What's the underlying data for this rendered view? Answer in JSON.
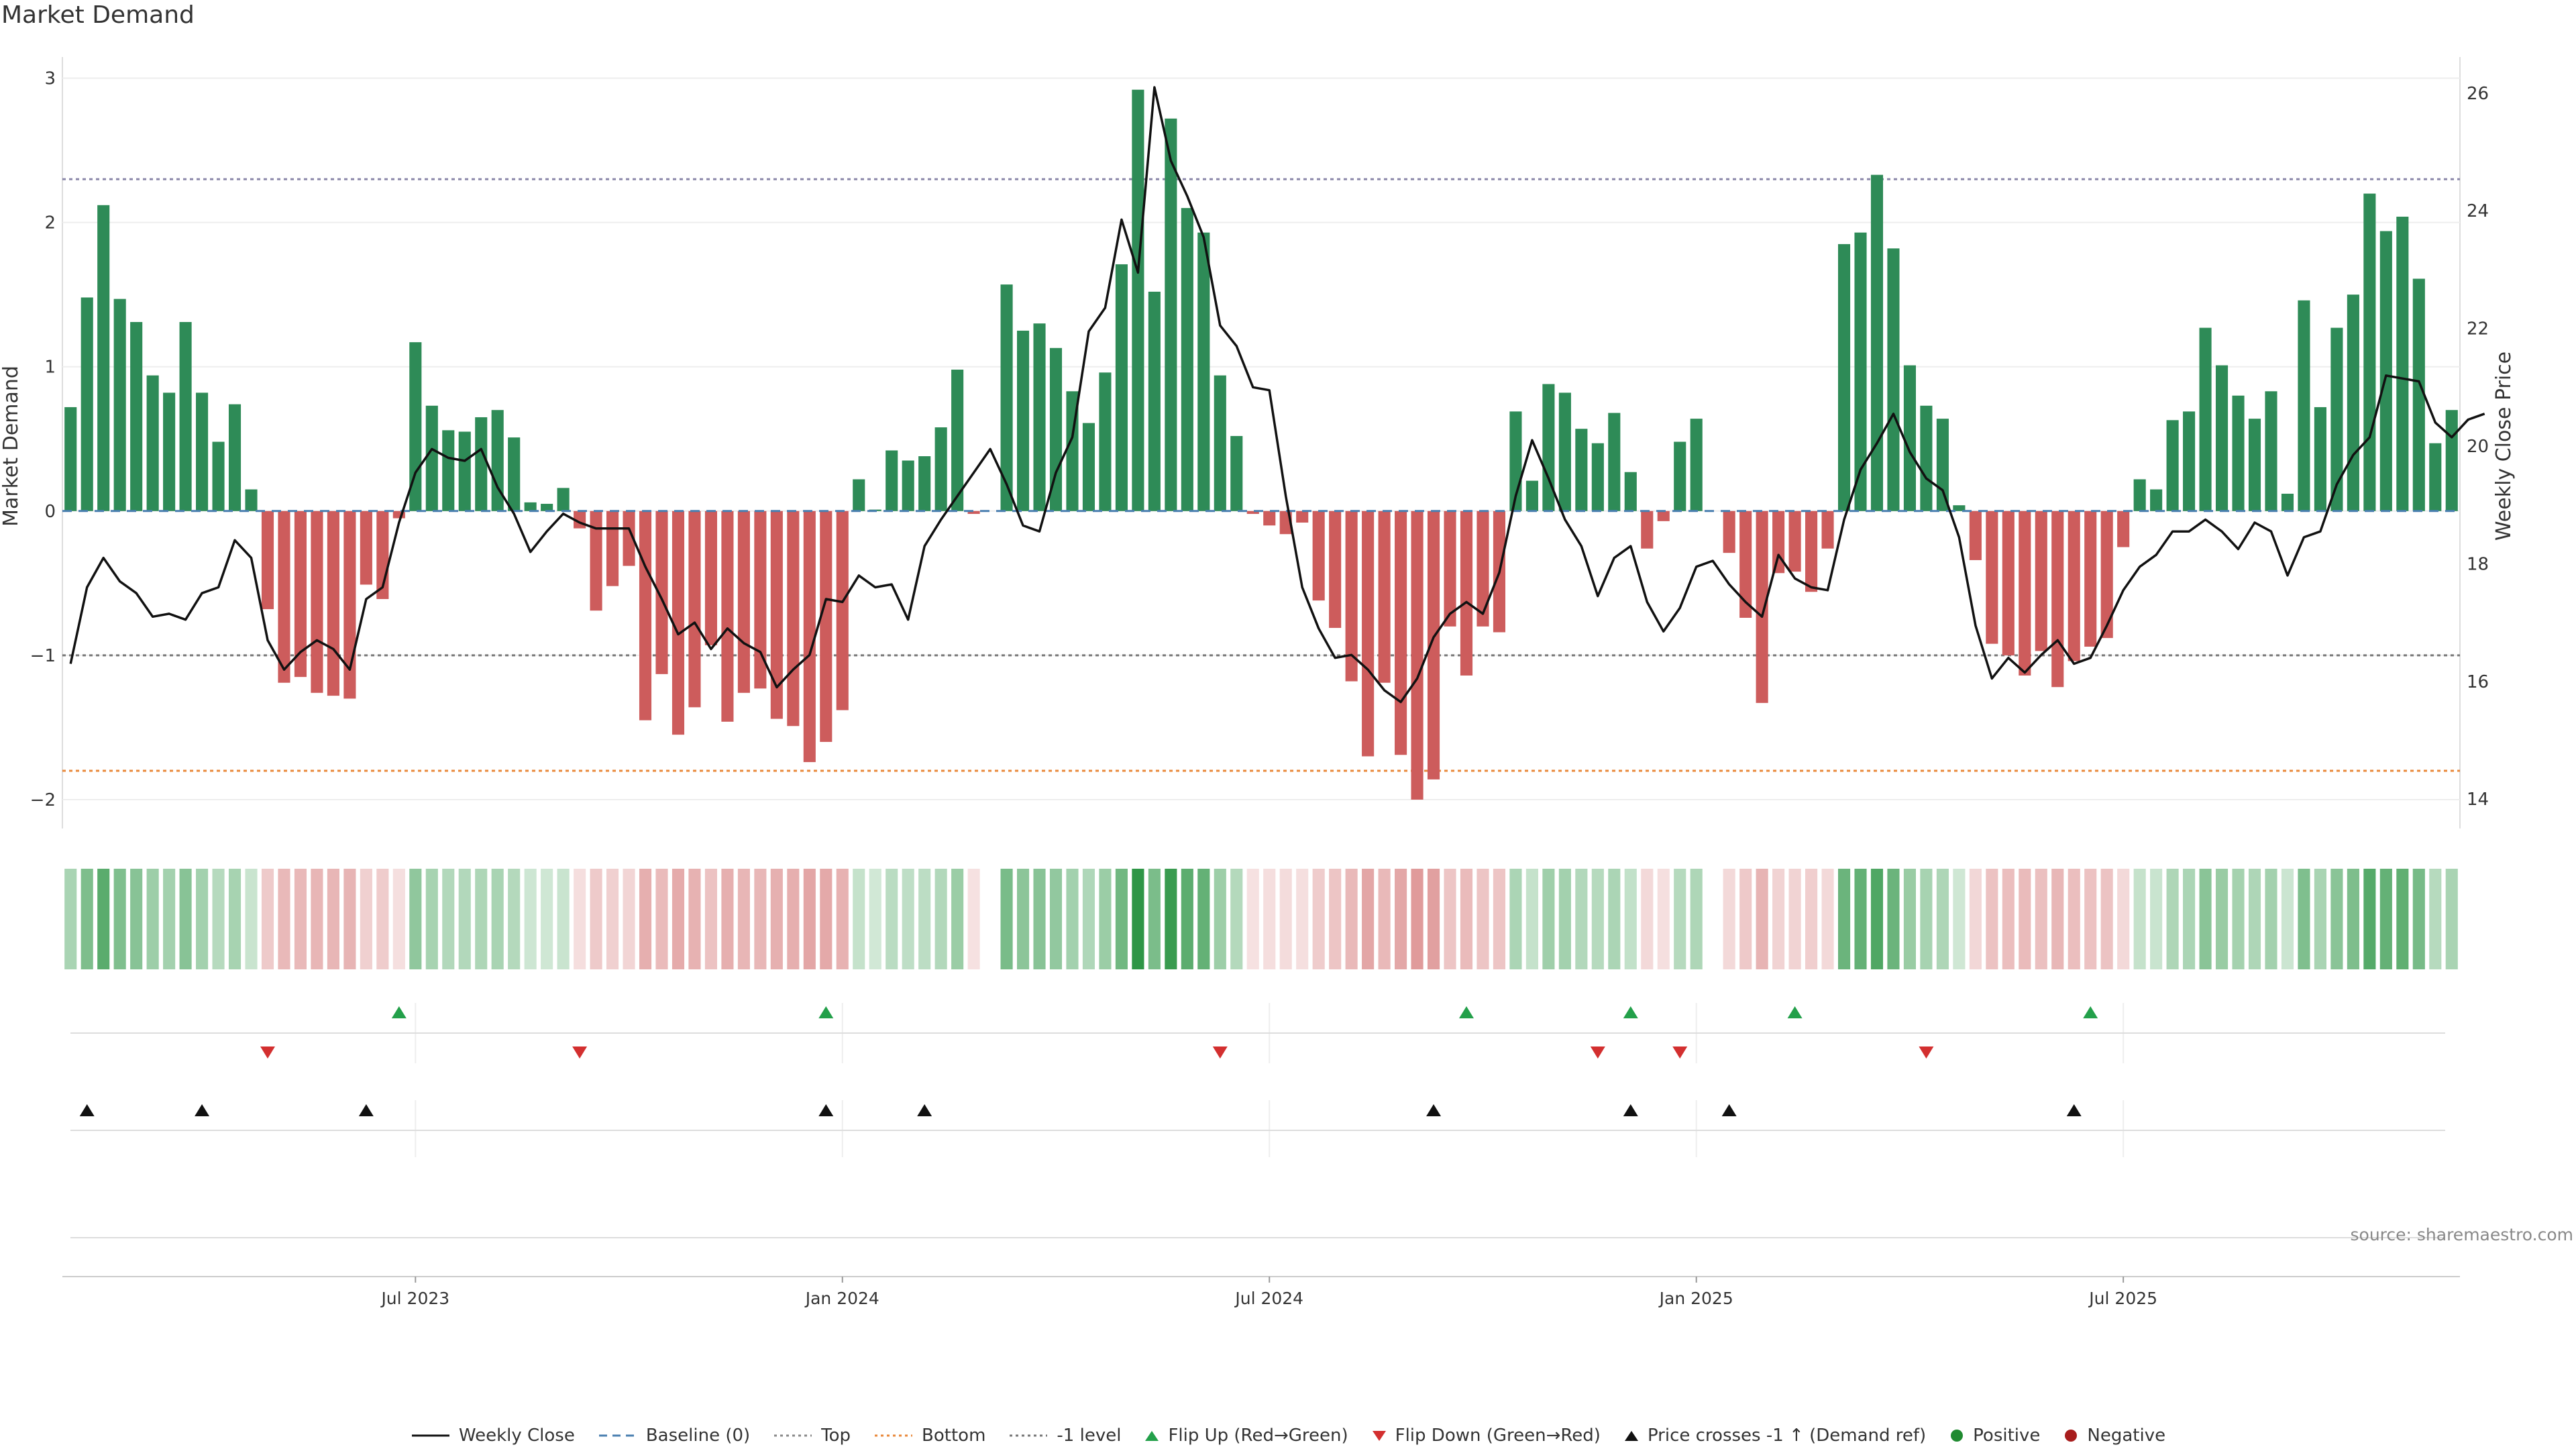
{
  "chart_data": {
    "type": "bar",
    "title": "Market Demand",
    "ylabel": "Market Demand",
    "y2label": "Weekly Close Price",
    "ylim": [
      -2.2,
      3.1
    ],
    "y2lim": [
      13.5,
      26.5
    ],
    "yticks": [
      "3",
      "2",
      "1",
      "0",
      "−1",
      "−2"
    ],
    "y2ticks": [
      "26",
      "24",
      "22",
      "20",
      "18",
      "16",
      "14"
    ],
    "x_axis_labels": [
      "Jul 2023",
      "Jan 2024",
      "Jul 2024",
      "Jan 2025",
      "Jul 2025"
    ],
    "x_axis_label_weeks": [
      21,
      47,
      73,
      99,
      125
    ],
    "reference_lines": {
      "top": 2.3,
      "bottom": -1.8,
      "minus_one": -1.0,
      "baseline": 0
    },
    "series": [
      {
        "name": "Market Demand",
        "values": [
          0.72,
          1.48,
          2.12,
          1.47,
          1.31,
          0.94,
          0.82,
          1.31,
          0.82,
          0.48,
          0.74,
          0.15,
          -0.68,
          -1.19,
          -1.15,
          -1.26,
          -1.28,
          -1.3,
          -0.51,
          -0.61,
          -0.05,
          1.17,
          0.73,
          0.56,
          0.55,
          0.65,
          0.7,
          0.51,
          0.06,
          0.05,
          0.16,
          -0.12,
          -0.69,
          -0.52,
          -0.38,
          -1.45,
          -1.13,
          -1.55,
          -1.36,
          -0.93,
          -1.46,
          -1.26,
          -1.23,
          -1.44,
          -1.49,
          -1.74,
          -1.6,
          -1.38,
          0.22,
          0.01,
          0.42,
          0.35,
          0.38,
          0.58,
          0.98,
          -0.02,
          0,
          1.57,
          1.25,
          1.3,
          1.13,
          0.83,
          0.61,
          0.96,
          1.71,
          2.92,
          1.52,
          2.72,
          2.1,
          1.93,
          0.94,
          0.52,
          -0.02,
          -0.1,
          -0.16,
          -0.08,
          -0.62,
          -0.81,
          -1.18,
          -1.7,
          -1.19,
          -1.69,
          -2.0,
          -1.86,
          -0.8,
          -1.14,
          -0.8,
          -0.84,
          0.69,
          0.21,
          0.88,
          0.82,
          0.57,
          0.47,
          0.68,
          0.27,
          -0.26,
          -0.07,
          0.48,
          0.64,
          0,
          -0.29,
          -0.74,
          -1.33,
          -0.43,
          -0.42,
          -0.56,
          -0.26,
          1.85,
          1.93,
          2.33,
          1.82,
          1.01,
          0.73,
          0.64,
          0.04,
          -0.34,
          -0.92,
          -1.0,
          -1.14,
          -0.97,
          -1.22,
          -1.04,
          -0.94,
          -0.88,
          -0.25,
          0.22,
          0.15,
          0.63,
          0.69,
          1.27,
          1.01,
          0.8,
          0.64,
          0.83,
          0.12,
          1.46,
          0.72,
          1.27,
          1.5,
          2.2,
          1.94,
          2.04,
          1.61,
          0.47,
          0.7
        ]
      },
      {
        "name": "Weekly Close",
        "values": [
          16.3,
          17.6,
          18.1,
          17.7,
          17.5,
          17.1,
          17.15,
          17.05,
          17.5,
          17.6,
          18.4,
          18.1,
          16.7,
          16.2,
          16.5,
          16.7,
          16.55,
          16.2,
          17.4,
          17.6,
          18.7,
          19.55,
          19.95,
          19.8,
          19.75,
          19.95,
          19.3,
          18.85,
          18.2,
          18.55,
          18.85,
          18.7,
          18.6,
          18.6,
          18.6,
          17.95,
          17.4,
          16.8,
          17.0,
          16.55,
          16.9,
          16.65,
          16.5,
          15.9,
          16.2,
          16.45,
          17.4,
          17.35,
          17.8,
          17.6,
          17.65,
          17.05,
          18.3,
          18.75,
          19.15,
          19.55,
          19.95,
          19.35,
          18.65,
          18.55,
          19.55,
          20.15,
          21.95,
          22.35,
          23.85,
          22.95,
          26.1,
          24.85,
          24.25,
          23.55,
          22.05,
          21.7,
          21.0,
          20.95,
          19.15,
          17.6,
          16.9,
          16.4,
          16.45,
          16.2,
          15.85,
          15.65,
          16.05,
          16.75,
          17.15,
          17.35,
          17.15,
          17.85,
          19.15,
          20.1,
          19.45,
          18.75,
          18.3,
          17.45,
          18.1,
          18.3,
          17.35,
          16.85,
          17.25,
          17.95,
          18.05,
          17.65,
          17.35,
          17.1,
          18.15,
          17.75,
          17.6,
          17.55,
          18.75,
          19.6,
          20.05,
          20.55,
          19.9,
          19.45,
          19.25,
          18.45,
          16.95,
          16.05,
          16.4,
          16.15,
          16.45,
          16.7,
          16.3,
          16.4,
          16.95,
          17.55,
          17.95,
          18.15,
          18.55,
          18.55,
          18.75,
          18.55,
          18.25,
          18.7,
          18.55,
          17.8,
          18.45,
          18.55,
          19.35,
          19.85,
          20.15,
          21.2,
          21.15,
          21.1,
          20.4,
          20.15,
          20.45,
          20.55
        ]
      }
    ],
    "flip_up_weeks": [
      20,
      46,
      85,
      95,
      105,
      123
    ],
    "flip_down_weeks": [
      12,
      31,
      70,
      93,
      98,
      113
    ],
    "price_cross_weeks": [
      1,
      8,
      18,
      46,
      52,
      83,
      95,
      101,
      122
    ]
  },
  "legend": [
    {
      "label": "Weekly Close",
      "icon": "solid-line",
      "color": "#111111"
    },
    {
      "label": "Baseline (0)",
      "icon": "dashed-line",
      "color": "#4a7fb0"
    },
    {
      "label": "Top",
      "icon": "dotted-line",
      "color": "#888888"
    },
    {
      "label": "Bottom",
      "icon": "dotted-line",
      "color": "#e9893b"
    },
    {
      "label": "-1 level",
      "icon": "dotted-line",
      "color": "#777777"
    },
    {
      "label": "Flip Up (Red→Green)",
      "icon": "triangle-up",
      "color": "#23a04a"
    },
    {
      "label": "Flip Down (Green→Red)",
      "icon": "triangle-down",
      "color": "#d32f2f"
    },
    {
      "label": "Price crosses -1 ↑ (Demand ref)",
      "icon": "triangle-up",
      "color": "#111111"
    },
    {
      "label": "Positive",
      "icon": "dot",
      "color": "#1f8a30"
    },
    {
      "label": "Negative",
      "icon": "dot",
      "color": "#a81d1d"
    }
  ],
  "source_note": "source: sharemaestro.com",
  "colors": {
    "positive": "#2e8b57",
    "negative": "#cd5c5c",
    "flip_up": "#23a04a",
    "flip_down": "#d32f2f",
    "cross": "#111111",
    "price": "#111111",
    "baseline": "#4a7fb0",
    "top_line": "#8a86a8",
    "bottom_line": "#e9893b",
    "minus_one_line": "#777777"
  }
}
